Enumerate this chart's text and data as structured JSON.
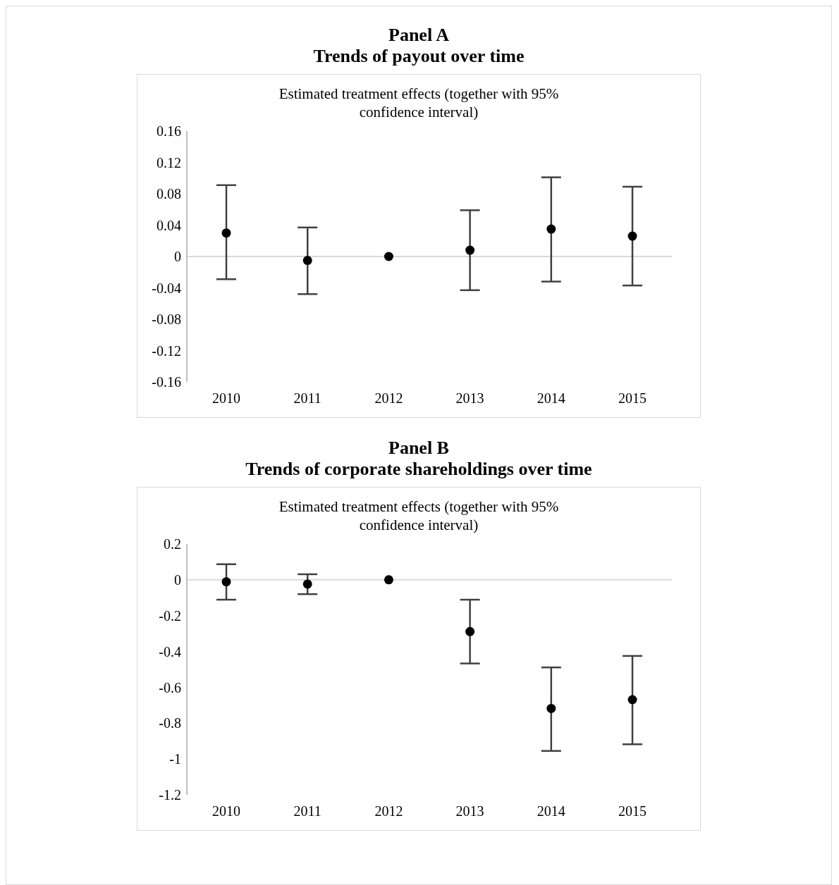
{
  "chart_data": [
    {
      "type": "scatter",
      "title": "Panel A",
      "subtitle": "Trends of payout over time",
      "annotations": [
        "Estimated treatment effects (together with 95% confidence interval)"
      ],
      "categories": [
        "2010",
        "2011",
        "2012",
        "2013",
        "2014",
        "2015"
      ],
      "series": [
        {
          "color": "#000000",
          "values": [
            0.03,
            -0.005,
            0,
            0.008,
            0.035,
            0.026
          ],
          "errors": [
            [
              -0.029,
              0.091
            ],
            [
              -0.048,
              0.037
            ],
            null,
            [
              -0.043,
              0.059
            ],
            [
              -0.032,
              0.101
            ],
            [
              -0.037,
              0.089
            ]
          ]
        }
      ],
      "ylim": [
        -0.16,
        0.16
      ],
      "yticks": [
        -0.16,
        -0.12,
        -0.08,
        -0.04,
        0,
        0.04,
        0.08,
        0.12,
        0.16
      ],
      "marker": "circle",
      "ref_lines": [
        {
          "axis": "y",
          "value": 0,
          "color": "#d9d9d9"
        }
      ]
    },
    {
      "type": "scatter",
      "title": "Panel B",
      "subtitle": "Trends of corporate shareholdings over time",
      "annotations": [
        "Estimated treatment effects (together with 95% confidence interval)"
      ],
      "categories": [
        "2010",
        "2011",
        "2012",
        "2013",
        "2014",
        "2015"
      ],
      "series": [
        {
          "color": "#000000",
          "values": [
            -0.011,
            -0.024,
            0,
            -0.289,
            -0.718,
            -0.669
          ],
          "errors": [
            [
              -0.111,
              0.087
            ],
            [
              -0.08,
              0.031
            ],
            null,
            [
              -0.467,
              -0.111
            ],
            [
              -0.955,
              -0.489
            ],
            [
              -0.918,
              -0.425
            ]
          ]
        }
      ],
      "ylim": [
        -1.2,
        0.2
      ],
      "yticks": [
        -1.2,
        -1,
        -0.8,
        -0.6,
        -0.4,
        -0.2,
        0,
        0.2
      ],
      "marker": "circle",
      "ref_lines": [
        {
          "axis": "y",
          "value": 0,
          "color": "#d9d9d9"
        }
      ]
    }
  ]
}
